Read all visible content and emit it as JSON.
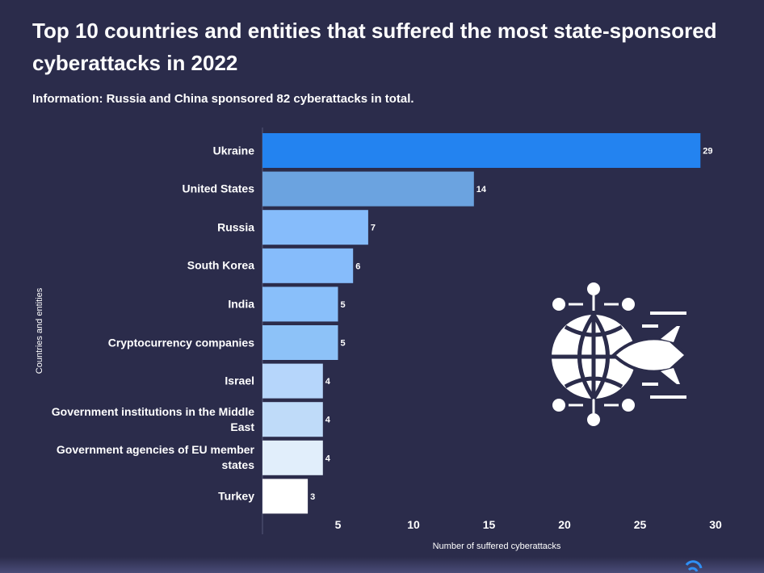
{
  "chart_data": {
    "type": "bar",
    "orientation": "horizontal",
    "title": "Top 10 countries and entities that suffered the most state-sponsored cyberattacks in 2022",
    "subtitle": "Information: Russia and China sponsored 82 cyberattacks in total.",
    "x_label": "Number of suffered cyberattacks",
    "y_label": "Countries and entities",
    "categories": [
      "Ukraine",
      "United States",
      "Russia",
      "South Korea",
      "India",
      "Cryptocurrency companies",
      "Israel",
      "Government institutions in the Middle East",
      "Government agencies of EU member states",
      "Turkey"
    ],
    "values": [
      29,
      14,
      7,
      6,
      5,
      5,
      4,
      4,
      4,
      3
    ],
    "colors": [
      "#2383f0",
      "#6ba3e0",
      "#86bcfb",
      "#86bcfb",
      "#89bffa",
      "#8dc2f8",
      "#b6d6fb",
      "#bfdbf9",
      "#e1eefb",
      "#ffffff"
    ],
    "xlim": [
      0,
      30
    ],
    "xticks": [
      5,
      10,
      15,
      20,
      25,
      30
    ]
  }
}
